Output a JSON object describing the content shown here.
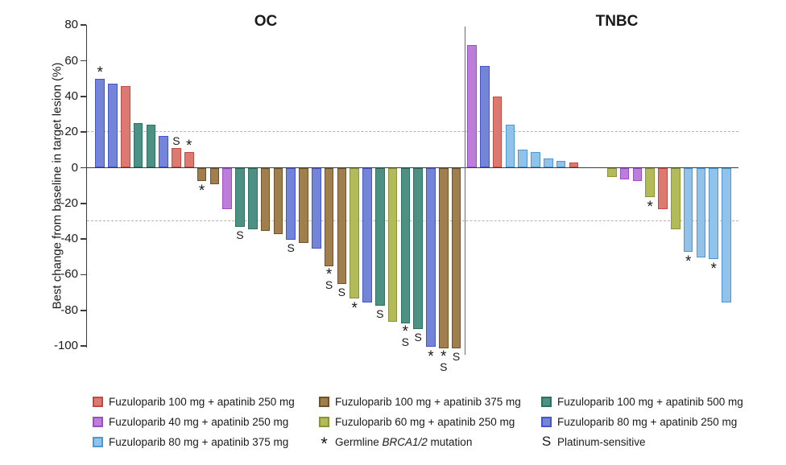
{
  "chart_data": {
    "type": "bar",
    "kind": "waterfall",
    "title": "",
    "ylabel": "Best change from baseline in target lesion (%)",
    "ylim": [
      -100,
      80
    ],
    "yticks": [
      80,
      60,
      40,
      20,
      0,
      -20,
      -40,
      -60,
      -80,
      -100
    ],
    "reference_lines_dashed": [
      20,
      -30
    ],
    "legend_position": "bottom",
    "marks_legend": {
      "*": "Germline BRCA1/2 mutation",
      "S": "Platinum-sensitive"
    },
    "groups": [
      {
        "label": "OC",
        "bars": [
          {
            "value": 50,
            "combo": "f80a250",
            "mark": "*"
          },
          {
            "value": 47,
            "combo": "f80a250",
            "mark": ""
          },
          {
            "value": 46,
            "combo": "f100a250",
            "mark": ""
          },
          {
            "value": 25,
            "combo": "f100a500",
            "mark": ""
          },
          {
            "value": 24,
            "combo": "f100a500",
            "mark": ""
          },
          {
            "value": 18,
            "combo": "f80a250",
            "mark": ""
          },
          {
            "value": 11,
            "combo": "f100a250",
            "mark": "S"
          },
          {
            "value": 9,
            "combo": "f100a250",
            "mark": "*"
          },
          {
            "value": -7,
            "combo": "f100a375",
            "mark": "*"
          },
          {
            "value": -9,
            "combo": "f100a375",
            "mark": ""
          },
          {
            "value": -23,
            "combo": "f40a250",
            "mark": ""
          },
          {
            "value": -33,
            "combo": "f100a500",
            "mark": "S"
          },
          {
            "value": -34,
            "combo": "f100a500",
            "mark": ""
          },
          {
            "value": -35,
            "combo": "f100a375",
            "mark": ""
          },
          {
            "value": -37,
            "combo": "f100a375",
            "mark": ""
          },
          {
            "value": -40,
            "combo": "f80a250",
            "mark": "S"
          },
          {
            "value": -42,
            "combo": "f100a375",
            "mark": ""
          },
          {
            "value": -45,
            "combo": "f80a250",
            "mark": ""
          },
          {
            "value": -55,
            "combo": "f100a375",
            "mark": "*S"
          },
          {
            "value": -65,
            "combo": "f100a375",
            "mark": "S"
          },
          {
            "value": -73,
            "combo": "f60a250",
            "mark": "*"
          },
          {
            "value": -75,
            "combo": "f80a250",
            "mark": ""
          },
          {
            "value": -77,
            "combo": "f100a500",
            "mark": "S"
          },
          {
            "value": -86,
            "combo": "f60a250",
            "mark": ""
          },
          {
            "value": -87,
            "combo": "f100a500",
            "mark": "*S"
          },
          {
            "value": -90,
            "combo": "f100a500",
            "mark": "S"
          },
          {
            "value": -100,
            "combo": "f80a250",
            "mark": "*"
          },
          {
            "value": -101,
            "combo": "f100a375",
            "mark": "*S"
          },
          {
            "value": -101,
            "combo": "f100a375",
            "mark": "S"
          }
        ]
      },
      {
        "label": "TNBC",
        "bars": [
          {
            "value": 69,
            "combo": "f40a250",
            "mark": ""
          },
          {
            "value": 57,
            "combo": "f80a250",
            "mark": ""
          },
          {
            "value": 40,
            "combo": "f100a250",
            "mark": ""
          },
          {
            "value": 24,
            "combo": "f80a375",
            "mark": ""
          },
          {
            "value": 10,
            "combo": "f80a375",
            "mark": ""
          },
          {
            "value": 9,
            "combo": "f80a375",
            "mark": ""
          },
          {
            "value": 5,
            "combo": "f80a375",
            "mark": ""
          },
          {
            "value": 4,
            "combo": "f80a375",
            "mark": ""
          },
          {
            "value": 3,
            "combo": "f100a250",
            "mark": ""
          },
          {
            "gap": true
          },
          {
            "gap": true
          },
          {
            "value": -5,
            "combo": "f60a250",
            "mark": ""
          },
          {
            "value": -6,
            "combo": "f40a250",
            "mark": ""
          },
          {
            "value": -7,
            "combo": "f40a250",
            "mark": ""
          },
          {
            "value": -16,
            "combo": "f60a250",
            "mark": "*"
          },
          {
            "value": -23,
            "combo": "f100a250",
            "mark": ""
          },
          {
            "value": -34,
            "combo": "f60a250",
            "mark": ""
          },
          {
            "value": -47,
            "combo": "f80a375",
            "mark": "*"
          },
          {
            "value": -50,
            "combo": "f80a375",
            "mark": ""
          },
          {
            "value": -51,
            "combo": "f80a375",
            "mark": "*"
          },
          {
            "value": -75,
            "combo": "f80a375",
            "mark": ""
          }
        ]
      }
    ]
  },
  "combos": {
    "f100a250": {
      "label": "Fuzuloparib 100 mg + apatinib 250 mg",
      "fill": "#DC7A71",
      "border": "#C14B41"
    },
    "f100a375": {
      "label": "Fuzuloparib 100 mg + apatinib 375 mg",
      "fill": "#A07E4E",
      "border": "#6E5327"
    },
    "f100a500": {
      "label": "Fuzuloparib 100 mg + apatinib 500 mg",
      "fill": "#4D9184",
      "border": "#2E7063"
    },
    "f40a250": {
      "label": "Fuzuloparib 40 mg + apatinib 250 mg",
      "fill": "#BC7ED8",
      "border": "#9C4EC6"
    },
    "f60a250": {
      "label": "Fuzuloparib 60 mg + apatinib 250 mg",
      "fill": "#B3BA5A",
      "border": "#8A9338"
    },
    "f80a250": {
      "label": "Fuzuloparib 80 mg + apatinib 250 mg",
      "fill": "#7484D7",
      "border": "#4456C7"
    },
    "f80a375": {
      "label": "Fuzuloparib 80 mg + apatinib 375 mg",
      "fill": "#91C3EA",
      "border": "#4E98D2"
    }
  },
  "legend": {
    "items": [
      {
        "col": 0,
        "row": 0,
        "type": "swatch",
        "combo": "f100a250"
      },
      {
        "col": 0,
        "row": 1,
        "type": "swatch",
        "combo": "f40a250"
      },
      {
        "col": 0,
        "row": 2,
        "type": "swatch",
        "combo": "f80a375"
      },
      {
        "col": 1,
        "row": 0,
        "type": "swatch",
        "combo": "f100a375"
      },
      {
        "col": 1,
        "row": 1,
        "type": "swatch",
        "combo": "f60a250"
      },
      {
        "col": 1,
        "row": 2,
        "type": "symbol",
        "symbol": "*",
        "label_prefix": "Germline ",
        "label_italic": "BRCA1/2",
        "label_suffix": " mutation"
      },
      {
        "col": 2,
        "row": 0,
        "type": "swatch",
        "combo": "f100a500"
      },
      {
        "col": 2,
        "row": 1,
        "type": "swatch",
        "combo": "f80a250"
      },
      {
        "col": 2,
        "row": 2,
        "type": "symbol",
        "symbol": "S",
        "label": "Platinum-sensitive"
      }
    ]
  },
  "axis_colors": {
    "axis": "#3b3b3b",
    "dashed": "#b4b4b4",
    "divider": "#6b6b6b"
  }
}
